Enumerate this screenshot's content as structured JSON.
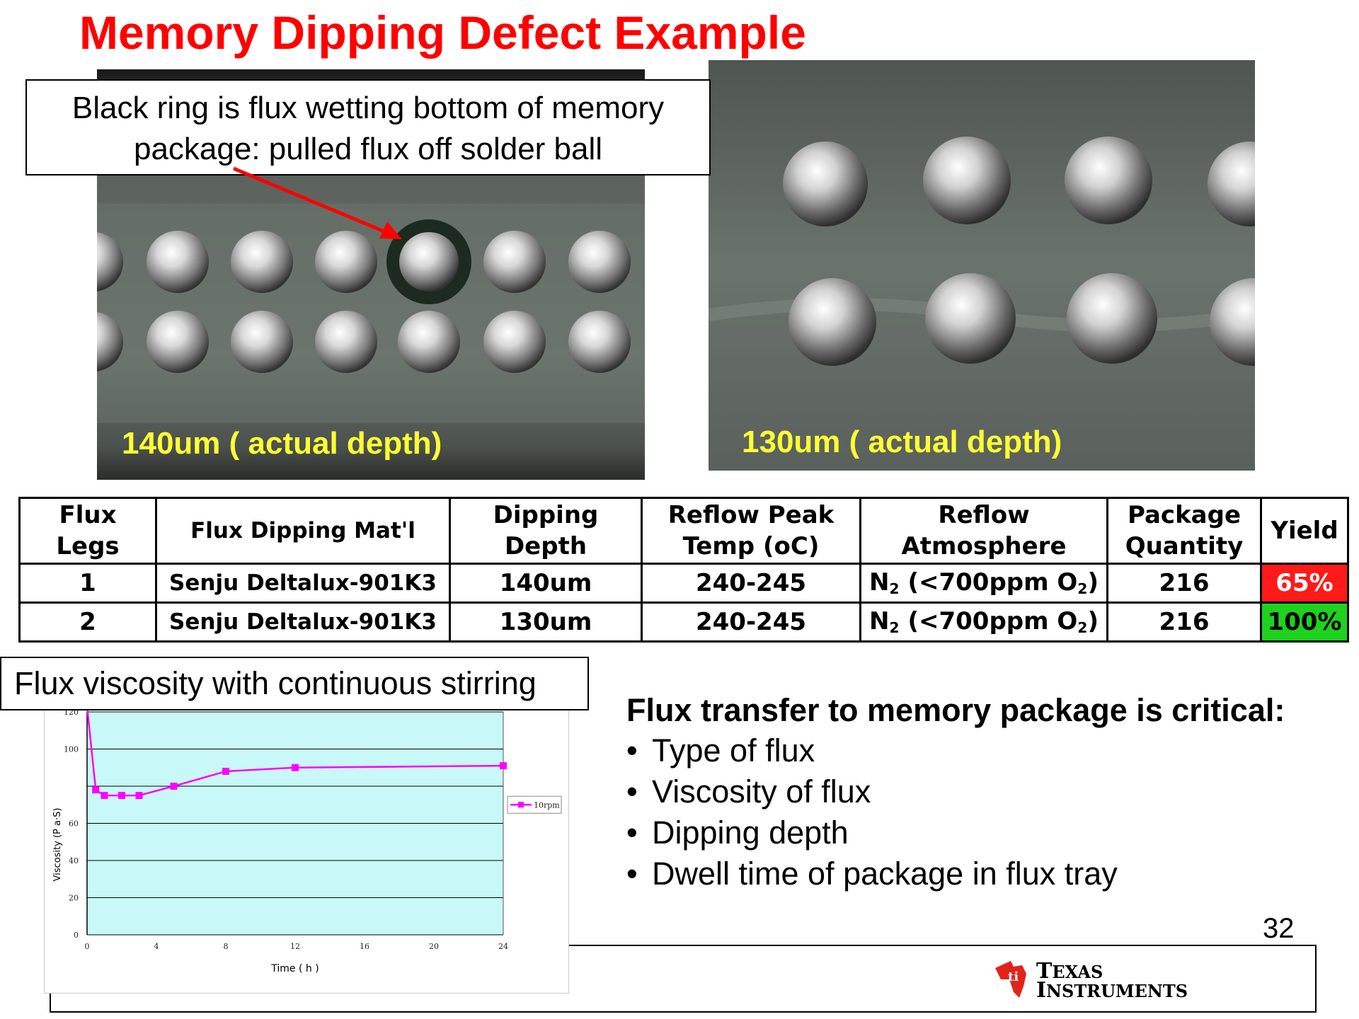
{
  "title": "Memory Dipping Defect Example",
  "callout": {
    "line1": "Black ring is flux wetting bottom of memory",
    "line2": "package: pulled flux off solder ball"
  },
  "photos": [
    {
      "caption": "140um ( actual depth)"
    },
    {
      "caption": "130um ( actual depth)"
    }
  ],
  "table": {
    "headers": {
      "legs": "Flux Legs",
      "mat": "Flux Dipping Mat'l",
      "depth_1": "Dipping",
      "depth_2": "Depth",
      "peak_1": "Reflow Peak",
      "peak_2": "Temp (oC)",
      "atm_1": "Reflow",
      "atm_2": "Atmosphere",
      "qty_1": "Package",
      "qty_2": "Quantity",
      "yield": "Yield"
    },
    "rows": [
      {
        "legs": "1",
        "mat": "Senju Deltalux-901K3",
        "depth": "140um",
        "peak": "240-245",
        "atm_pre": "N",
        "atm_sub1": "2",
        "atm_mid": " (<700ppm O",
        "atm_sub2": "2",
        "atm_post": ")",
        "qty": "216",
        "yield": "65%"
      },
      {
        "legs": "2",
        "mat": "Senju Deltalux-901K3",
        "depth": "130um",
        "peak": "240-245",
        "atm_pre": "N",
        "atm_sub1": "2",
        "atm_mid": " (<700ppm O",
        "atm_sub2": "2",
        "atm_post": ")",
        "qty": "216",
        "yield": "100%"
      }
    ],
    "colors": {
      "yield_bad": "#ff1a1a",
      "yield_good": "#1ed21e"
    }
  },
  "viscosity_label": "Flux viscosity with continuous stirring",
  "critical": {
    "heading": "Flux transfer to memory package is critical:",
    "bullets": [
      "Type of flux",
      "Viscosity of flux",
      "Dipping depth",
      "Dwell time of package in flux tray"
    ]
  },
  "page_number": "32",
  "logo": {
    "line1_big": "T",
    "line1": "EXAS",
    "line2_big": "I",
    "line2": "NSTRUMENTS"
  },
  "chart_data": {
    "type": "line",
    "xlabel": "Time ( h )",
    "ylabel": "Viscosity (P a·S)",
    "xlim": [
      0,
      24
    ],
    "ylim": [
      0,
      120
    ],
    "xticks": [
      "0",
      "4",
      "8",
      "12",
      "16",
      "20",
      "24"
    ],
    "yticks": [
      "0",
      "20",
      "40",
      "60",
      "100",
      "120"
    ],
    "legend_position": "right",
    "plot_bg": "#c8f8f8",
    "series": [
      {
        "name": "10rpm",
        "color": "#ff00ff",
        "x": [
          0,
          0.5,
          1,
          2,
          3,
          5,
          8,
          12,
          24
        ],
        "y": [
          123,
          78,
          75,
          75,
          75,
          80,
          88,
          90,
          91
        ]
      }
    ]
  }
}
